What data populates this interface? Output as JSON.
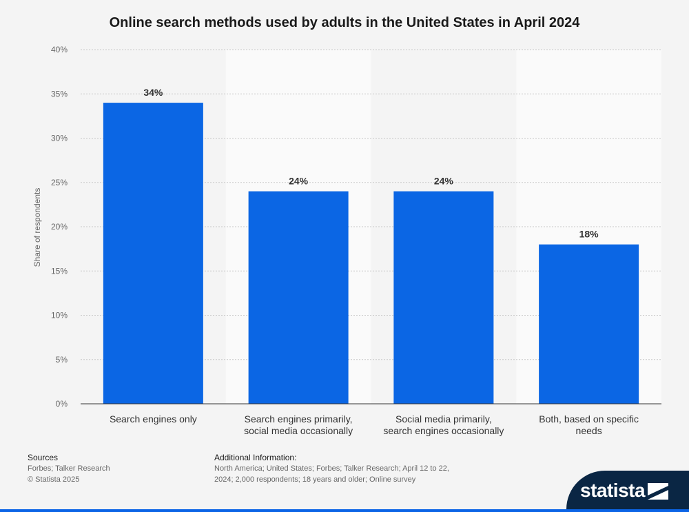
{
  "chart_data": {
    "type": "bar",
    "title": "Online search methods used by adults in the United States in April 2024",
    "categories": [
      [
        "Search engines only"
      ],
      [
        "Search engines primarily,",
        "social media occasionally"
      ],
      [
        "Social media primarily,",
        "search engines occasionally"
      ],
      [
        "Both, based on specific",
        "needs"
      ]
    ],
    "values": [
      34,
      24,
      24,
      18
    ],
    "value_labels": [
      "34%",
      "24%",
      "24%",
      "18%"
    ],
    "ylabel": "Share of respondents",
    "xlabel": "",
    "ylim": [
      0,
      40
    ],
    "yticks": [
      0,
      5,
      10,
      15,
      20,
      25,
      30,
      35,
      40
    ],
    "ytick_labels": [
      "0%",
      "5%",
      "10%",
      "15%",
      "20%",
      "25%",
      "30%",
      "35%",
      "40%"
    ],
    "grid": true,
    "bar_color": "#0b66e4",
    "alt_band_color": "#fafafa"
  },
  "footer": {
    "sources_heading": "Sources",
    "sources_lines": [
      "Forbes; Talker Research",
      "© Statista 2025"
    ],
    "additional_heading": "Additional Information:",
    "additional_lines": [
      "North America; United States; Forbes; Talker Research; April 12 to 22,",
      "2024; 2,000 respondents; 18 years and older; Online survey"
    ]
  },
  "brand": {
    "name": "statista",
    "tab_color": "#0a2644",
    "accent_color": "#0b64e6"
  }
}
